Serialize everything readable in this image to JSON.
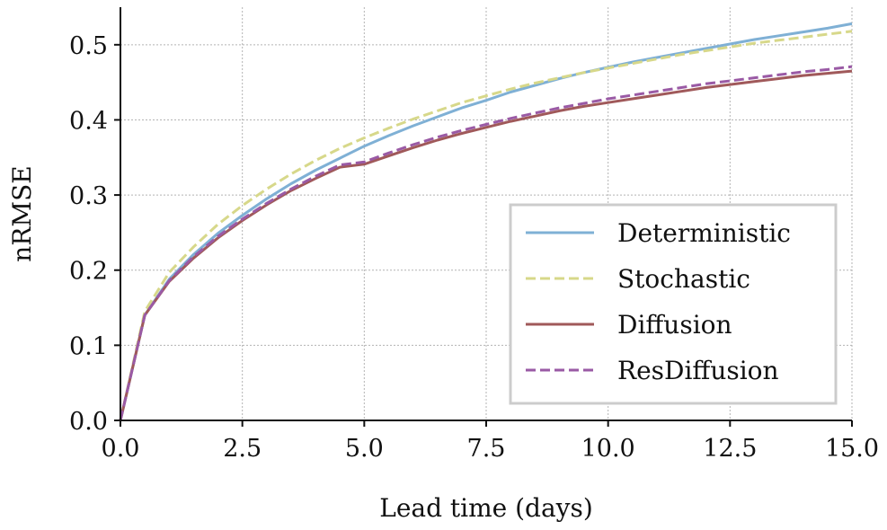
{
  "chart_data": {
    "type": "line",
    "xlabel": "Lead time (days)",
    "ylabel": "nRMSE",
    "xlim": [
      0,
      15
    ],
    "ylim": [
      0,
      0.55
    ],
    "xticks": [
      0,
      2.5,
      5,
      7.5,
      10,
      12.5,
      15
    ],
    "xtick_labels": [
      "0.0",
      "2.5",
      "5.0",
      "7.5",
      "10.0",
      "12.5",
      "15.0"
    ],
    "yticks": [
      0,
      0.1,
      0.2,
      0.3,
      0.4,
      0.5
    ],
    "ytick_labels": [
      "0.0",
      "0.1",
      "0.2",
      "0.3",
      "0.4",
      "0.5"
    ],
    "grid": true,
    "legend_position": "lower-right",
    "x": [
      0,
      0.5,
      1,
      1.5,
      2,
      2.5,
      3,
      3.5,
      4,
      4.5,
      5,
      5.5,
      6,
      6.5,
      7,
      7.5,
      8,
      8.5,
      9,
      9.5,
      10,
      10.5,
      11,
      11.5,
      12,
      12.5,
      13,
      13.5,
      14,
      14.5,
      15
    ],
    "series": [
      {
        "name": "Deterministic",
        "color": "#7fb0d5",
        "dash": "solid",
        "values": [
          0,
          0.14,
          0.188,
          0.221,
          0.249,
          0.273,
          0.295,
          0.315,
          0.333,
          0.349,
          0.365,
          0.379,
          0.392,
          0.404,
          0.416,
          0.426,
          0.437,
          0.446,
          0.455,
          0.463,
          0.47,
          0.477,
          0.483,
          0.489,
          0.495,
          0.501,
          0.507,
          0.512,
          0.517,
          0.522,
          0.528
        ]
      },
      {
        "name": "Stochastic",
        "color": "#d7d88a",
        "dash": "dashed",
        "values": [
          0,
          0.145,
          0.197,
          0.231,
          0.261,
          0.286,
          0.308,
          0.328,
          0.346,
          0.362,
          0.376,
          0.389,
          0.401,
          0.412,
          0.423,
          0.432,
          0.441,
          0.449,
          0.456,
          0.463,
          0.469,
          0.475,
          0.481,
          0.487,
          0.492,
          0.497,
          0.502,
          0.506,
          0.51,
          0.514,
          0.518
        ]
      },
      {
        "name": "Diffusion",
        "color": "#a0595a",
        "dash": "solid",
        "values": [
          0,
          0.14,
          0.185,
          0.216,
          0.243,
          0.266,
          0.287,
          0.306,
          0.322,
          0.337,
          0.341,
          0.352,
          0.363,
          0.373,
          0.382,
          0.39,
          0.398,
          0.405,
          0.412,
          0.418,
          0.423,
          0.428,
          0.433,
          0.438,
          0.443,
          0.447,
          0.451,
          0.455,
          0.459,
          0.462,
          0.465
        ]
      },
      {
        "name": "ResDiffusion",
        "color": "#9a5aa5",
        "dash": "dashed",
        "values": [
          0,
          0.14,
          0.186,
          0.218,
          0.245,
          0.268,
          0.289,
          0.308,
          0.325,
          0.34,
          0.344,
          0.356,
          0.367,
          0.377,
          0.386,
          0.394,
          0.402,
          0.409,
          0.416,
          0.422,
          0.428,
          0.433,
          0.438,
          0.443,
          0.448,
          0.452,
          0.456,
          0.46,
          0.464,
          0.467,
          0.471
        ]
      }
    ]
  }
}
